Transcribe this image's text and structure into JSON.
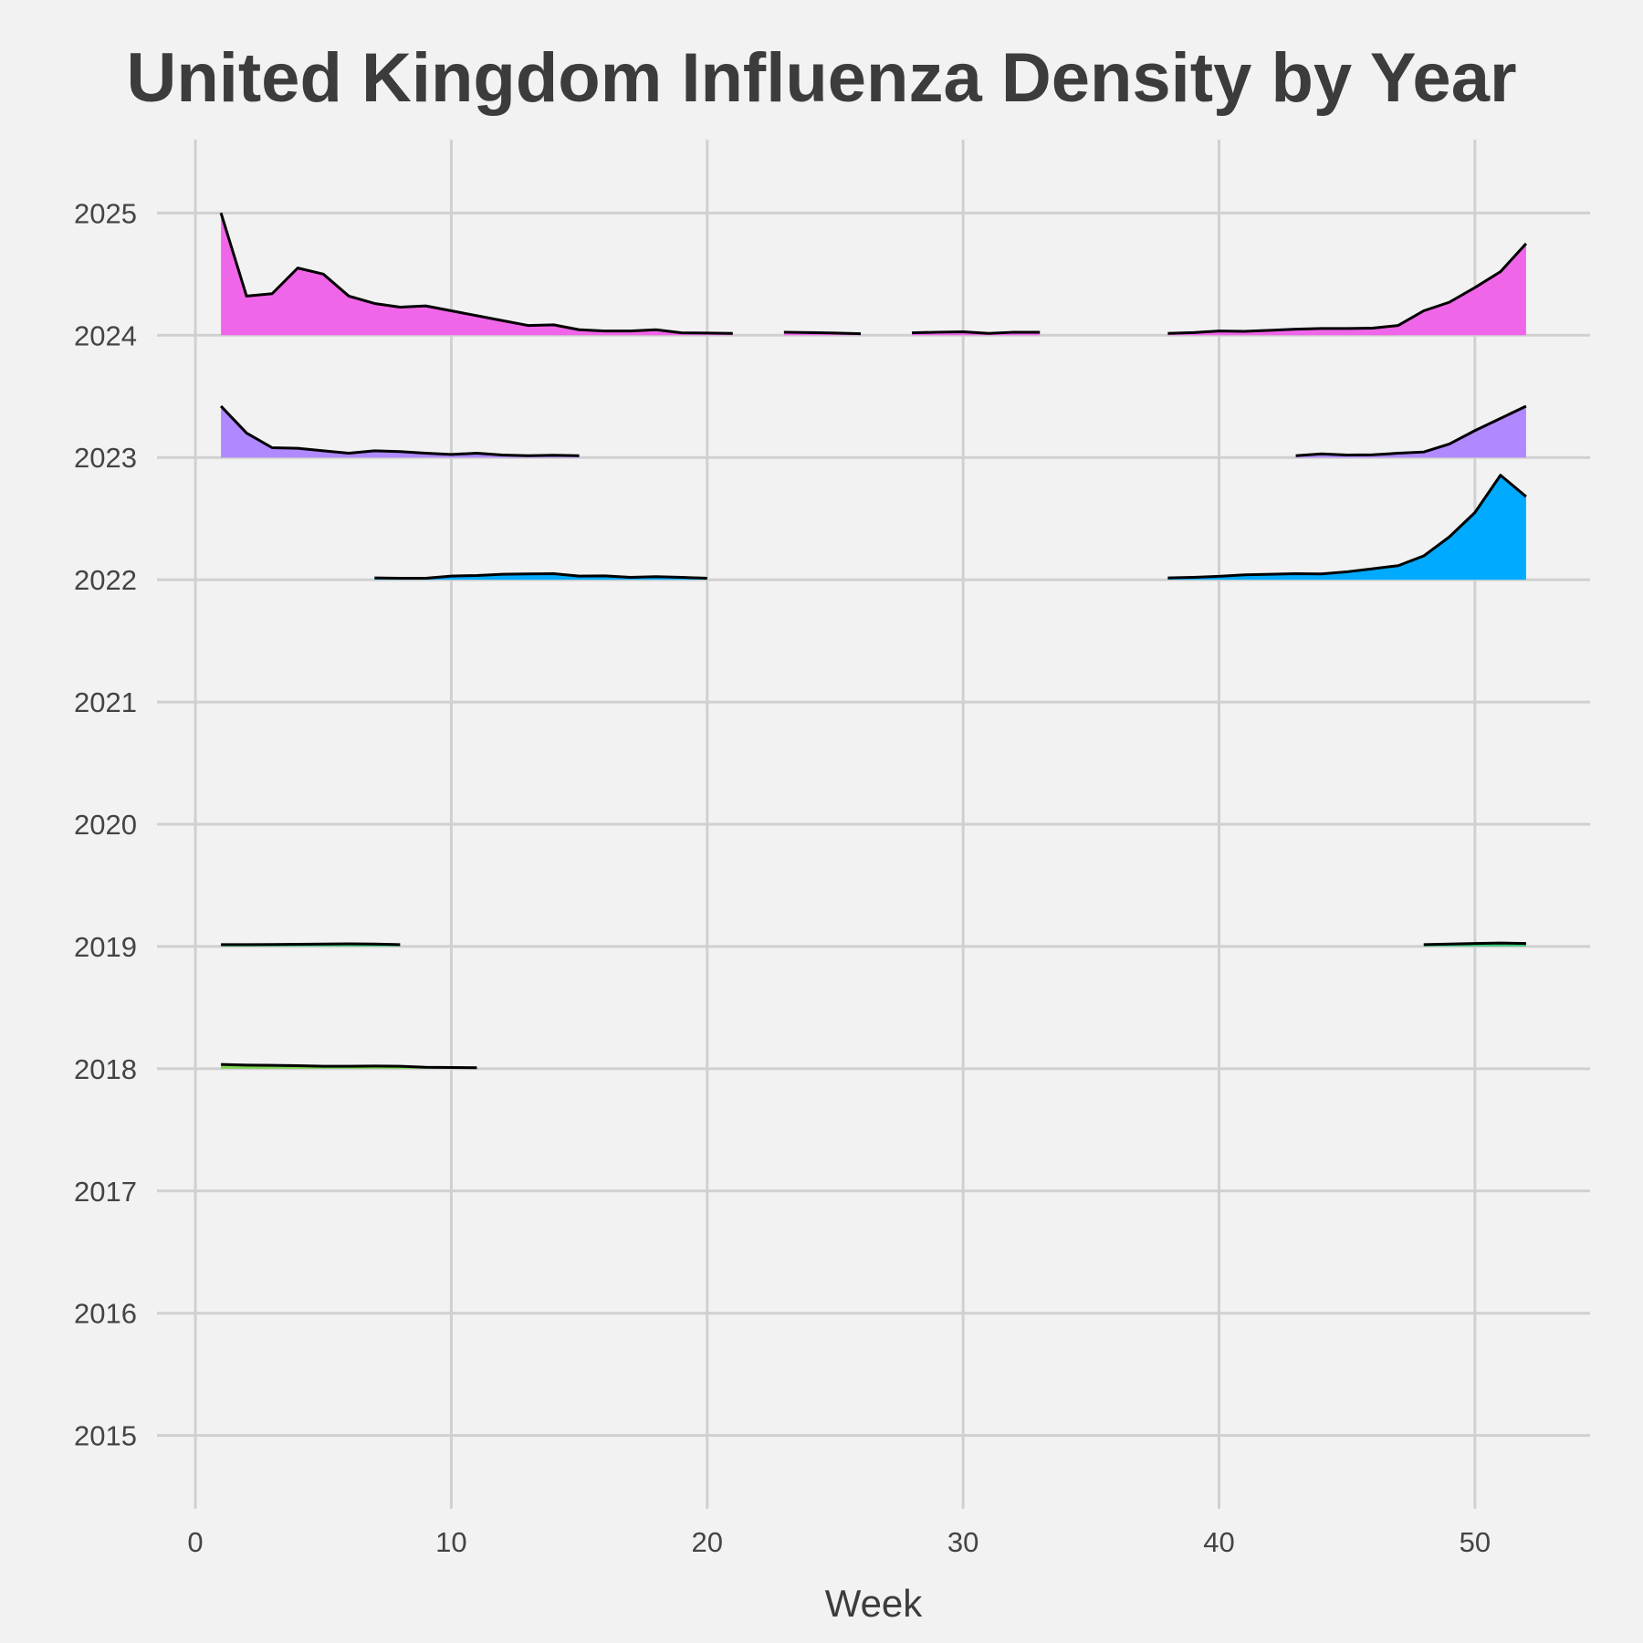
{
  "chart_data": {
    "type": "area",
    "title": "United Kingdom Influenza Density by Year",
    "xlabel": "Week",
    "ylabel": "",
    "xlim": [
      -1.5,
      54.5
    ],
    "ylim": [
      2014.4,
      2025.6
    ],
    "x_ticks": [
      0,
      10,
      20,
      30,
      40,
      50
    ],
    "y_ticks": [
      2015,
      2016,
      2017,
      2018,
      2019,
      2020,
      2021,
      2022,
      2023,
      2024,
      2025
    ],
    "grid": true,
    "legend": "none",
    "colors": {
      "2018": "#7cd250",
      "2019": "#3cc878",
      "2022": "#00aaff",
      "2023": "#b088ff",
      "2024": "#f066e8",
      "line": "#000000",
      "grid": "#d0d0d0",
      "background": "#f2f2f2"
    },
    "series": [
      {
        "year": 2018,
        "segments": [
          {
            "x": [
              1,
              2,
              3,
              4,
              5,
              6,
              7,
              8,
              9,
              10,
              11
            ],
            "y": [
              0.035,
              0.03,
              0.028,
              0.025,
              0.02,
              0.02,
              0.022,
              0.02,
              0.012,
              0.01,
              0.008
            ]
          }
        ]
      },
      {
        "year": 2019,
        "segments": [
          {
            "x": [
              1,
              2,
              3,
              4,
              5,
              6,
              7,
              8
            ],
            "y": [
              0.015,
              0.015,
              0.016,
              0.018,
              0.02,
              0.022,
              0.02,
              0.015
            ]
          },
          {
            "x": [
              48,
              49,
              50,
              51,
              52
            ],
            "y": [
              0.015,
              0.02,
              0.025,
              0.028,
              0.025
            ]
          }
        ]
      },
      {
        "year": 2022,
        "segments": [
          {
            "x": [
              7,
              8,
              9,
              10,
              11,
              12,
              13,
              14,
              15,
              16,
              17,
              18,
              19,
              20
            ],
            "y": [
              0.015,
              0.012,
              0.012,
              0.03,
              0.035,
              0.045,
              0.048,
              0.05,
              0.03,
              0.032,
              0.02,
              0.025,
              0.02,
              0.012
            ]
          },
          {
            "x": [
              38,
              39,
              40,
              41,
              42,
              43,
              44,
              45,
              46,
              47,
              48,
              49,
              50,
              51,
              52
            ],
            "y": [
              0.015,
              0.02,
              0.028,
              0.04,
              0.045,
              0.05,
              0.048,
              0.065,
              0.09,
              0.115,
              0.195,
              0.35,
              0.55,
              0.855,
              0.68
            ]
          }
        ]
      },
      {
        "year": 2023,
        "segments": [
          {
            "x": [
              1,
              2,
              3,
              4,
              5,
              6,
              7,
              8,
              9,
              10,
              11,
              12,
              13,
              14,
              15
            ],
            "y": [
              0.42,
              0.2,
              0.08,
              0.075,
              0.055,
              0.035,
              0.055,
              0.048,
              0.035,
              0.025,
              0.035,
              0.02,
              0.015,
              0.018,
              0.015
            ]
          },
          {
            "x": [
              43,
              44,
              45,
              46,
              47,
              48,
              49,
              50,
              51,
              52
            ],
            "y": [
              0.015,
              0.03,
              0.02,
              0.022,
              0.035,
              0.045,
              0.11,
              0.22,
              0.32,
              0.42
            ]
          }
        ]
      },
      {
        "year": 2024,
        "segments": [
          {
            "x": [
              1,
              2,
              3,
              4,
              5,
              6,
              7,
              8,
              9,
              10,
              11,
              12,
              13,
              14,
              15,
              16,
              17,
              18,
              19,
              20,
              21
            ],
            "y": [
              1.0,
              0.32,
              0.34,
              0.55,
              0.5,
              0.32,
              0.26,
              0.23,
              0.24,
              0.2,
              0.16,
              0.12,
              0.08,
              0.085,
              0.045,
              0.035,
              0.035,
              0.045,
              0.02,
              0.018,
              0.015
            ]
          },
          {
            "x": [
              23,
              24,
              25,
              26
            ],
            "y": [
              0.025,
              0.022,
              0.018,
              0.012
            ]
          },
          {
            "x": [
              28,
              29,
              30,
              31,
              32,
              33
            ],
            "y": [
              0.02,
              0.025,
              0.028,
              0.015,
              0.025,
              0.025
            ]
          },
          {
            "x": [
              38,
              39,
              40,
              41,
              42,
              43,
              44,
              45,
              46,
              47,
              48,
              49,
              50,
              51,
              52
            ],
            "y": [
              0.015,
              0.022,
              0.035,
              0.032,
              0.04,
              0.05,
              0.055,
              0.055,
              0.058,
              0.08,
              0.2,
              0.27,
              0.39,
              0.52,
              0.75
            ]
          }
        ]
      }
    ]
  }
}
